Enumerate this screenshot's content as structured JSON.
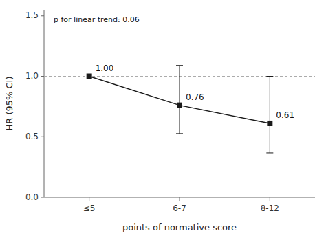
{
  "chart_data": {
    "type": "line",
    "categories": [
      "≤5",
      "6-7",
      "8-12"
    ],
    "values": [
      1.0,
      0.76,
      0.61
    ],
    "value_labels": [
      "1.00",
      "0.76",
      "0.61"
    ],
    "ci_lower": [
      null,
      0.525,
      0.365
    ],
    "ci_upper": [
      null,
      1.09,
      1.0
    ],
    "reference_line": 1.0,
    "xlabel": "points of normative score",
    "ylabel": "HR (95% CI)",
    "annotation": "p for linear trend: 0.06",
    "ylim": [
      0.0,
      1.55
    ],
    "yticks": [
      {
        "value": 0.0,
        "label": "0.0"
      },
      0.5,
      {
        "value": 1.0,
        "label": "1.0"
      },
      1.5
    ],
    "color": "#1a1a1a",
    "marker": "square",
    "data_labels": true,
    "grid": false
  }
}
